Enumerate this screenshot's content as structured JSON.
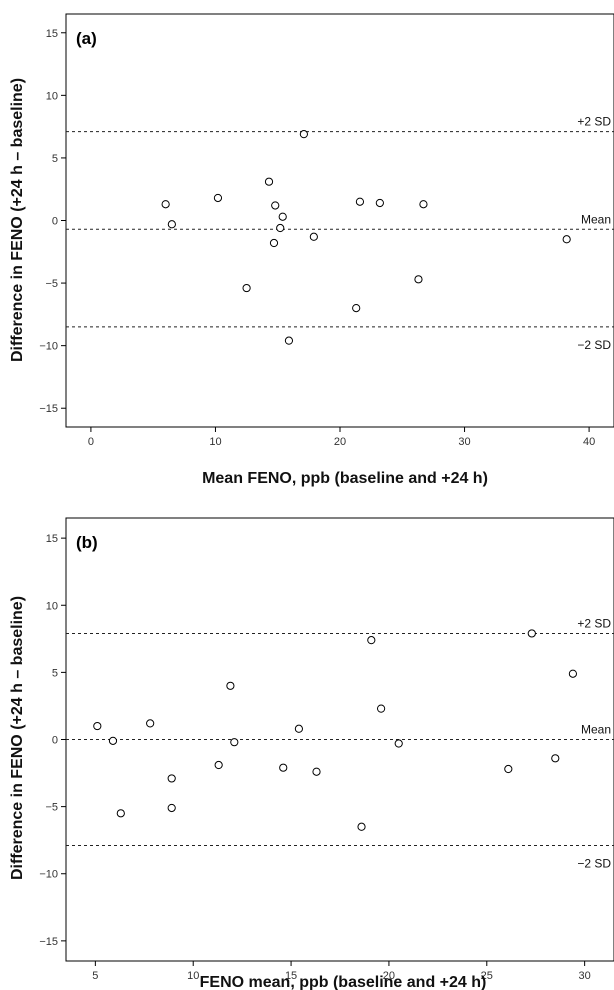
{
  "chart_data": [
    {
      "type": "scatter",
      "panel_label": "(a)",
      "xlabel": "Mean FENO, ppb (baseline and +24 h)",
      "ylabel": "Difference in FENO (+24 h – baseline)",
      "xlim": [
        -2,
        42
      ],
      "ylim": [
        -16.5,
        16.5
      ],
      "xticks": [
        0,
        10,
        20,
        30,
        40
      ],
      "yticks": [
        15,
        10,
        5,
        0,
        -5,
        -10,
        -15
      ],
      "ytick_labels": [
        "15",
        "10",
        "5",
        "0",
        "−5",
        "−10",
        "−15"
      ],
      "reference_lines": [
        {
          "label": "+2 SD",
          "y": 7.1
        },
        {
          "label": "Mean",
          "y": -0.7
        },
        {
          "label": "−2 SD",
          "y": -8.5
        }
      ],
      "points": [
        {
          "x": 6.0,
          "y": 1.3
        },
        {
          "x": 6.5,
          "y": -0.3
        },
        {
          "x": 10.2,
          "y": 1.8
        },
        {
          "x": 12.5,
          "y": -5.4
        },
        {
          "x": 14.3,
          "y": 3.1
        },
        {
          "x": 14.7,
          "y": -1.8
        },
        {
          "x": 14.8,
          "y": 1.2
        },
        {
          "x": 15.2,
          "y": -0.6
        },
        {
          "x": 15.4,
          "y": 0.3
        },
        {
          "x": 15.9,
          "y": -9.6
        },
        {
          "x": 17.1,
          "y": 6.9
        },
        {
          "x": 17.9,
          "y": -1.3
        },
        {
          "x": 21.3,
          "y": -7.0
        },
        {
          "x": 21.6,
          "y": 1.5
        },
        {
          "x": 23.2,
          "y": 1.4
        },
        {
          "x": 26.3,
          "y": -4.7
        },
        {
          "x": 26.7,
          "y": 1.3
        },
        {
          "x": 38.2,
          "y": -1.5
        }
      ]
    },
    {
      "type": "scatter",
      "panel_label": "(b)",
      "xlabel": "FENO mean, ppb (baseline and +24 h)",
      "ylabel": "Difference in FENO (+24 h – baseline)",
      "xlim": [
        3.5,
        31.5
      ],
      "ylim": [
        -16.5,
        16.5
      ],
      "xticks": [
        5,
        10,
        15,
        20,
        25,
        30
      ],
      "yticks": [
        15,
        10,
        5,
        0,
        -5,
        -10,
        -15
      ],
      "ytick_labels": [
        "15",
        "10",
        "5",
        "0",
        "−5",
        "−10",
        "−15"
      ],
      "reference_lines": [
        {
          "label": "+2 SD",
          "y": 7.9
        },
        {
          "label": "Mean",
          "y": 0.0
        },
        {
          "label": "−2 SD",
          "y": -7.9
        }
      ],
      "points": [
        {
          "x": 5.1,
          "y": 1.0
        },
        {
          "x": 5.9,
          "y": -0.1
        },
        {
          "x": 6.3,
          "y": -5.5
        },
        {
          "x": 7.8,
          "y": 1.2
        },
        {
          "x": 8.9,
          "y": -2.9
        },
        {
          "x": 8.9,
          "y": -5.1
        },
        {
          "x": 11.3,
          "y": -1.9
        },
        {
          "x": 11.9,
          "y": 4.0
        },
        {
          "x": 12.1,
          "y": -0.2
        },
        {
          "x": 14.6,
          "y": -2.1
        },
        {
          "x": 15.4,
          "y": 0.8
        },
        {
          "x": 16.3,
          "y": -2.4
        },
        {
          "x": 18.6,
          "y": -6.5
        },
        {
          "x": 19.1,
          "y": 7.4
        },
        {
          "x": 19.6,
          "y": 2.3
        },
        {
          "x": 20.5,
          "y": -0.3
        },
        {
          "x": 26.1,
          "y": -2.2
        },
        {
          "x": 27.3,
          "y": 7.9
        },
        {
          "x": 28.5,
          "y": -1.4
        },
        {
          "x": 29.4,
          "y": 4.9
        }
      ]
    }
  ]
}
